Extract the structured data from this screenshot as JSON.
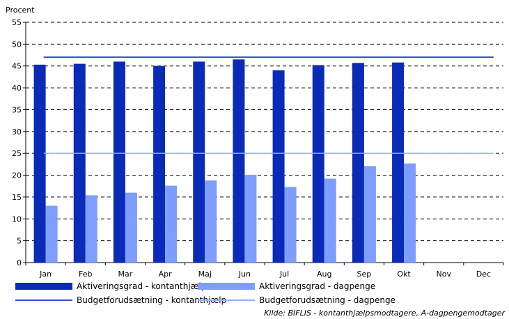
{
  "chart_data": {
    "type": "bar",
    "ylabel": "Procent",
    "ylim": [
      0,
      55
    ],
    "yticks": [
      0,
      5,
      10,
      15,
      20,
      25,
      30,
      35,
      40,
      45,
      50,
      55
    ],
    "categories": [
      "Jan",
      "Feb",
      "Mar",
      "Apr",
      "Maj",
      "Jun",
      "Jul",
      "Aug",
      "Sep",
      "Okt",
      "Nov",
      "Dec"
    ],
    "grid": true,
    "legend_position": "bottom",
    "series": [
      {
        "name": "Aktiveringsgrad - kontanthjælp",
        "kind": "bar",
        "color": "#0a2bb8",
        "values": [
          45.3,
          45.5,
          46.0,
          45.0,
          46.0,
          46.5,
          44.0,
          45.2,
          45.7,
          45.8,
          null,
          null
        ]
      },
      {
        "name": "Aktiveringsgrad - dagpenge",
        "kind": "bar",
        "color": "#7f9dff",
        "values": [
          13.0,
          15.4,
          16.0,
          17.6,
          18.8,
          20.1,
          17.3,
          19.2,
          22.1,
          22.7,
          null,
          null
        ]
      },
      {
        "name": "Budgetforudsætning - kontanthjælp",
        "kind": "line",
        "color": "#2f4fcc",
        "values": [
          47,
          47,
          47,
          47,
          47,
          47,
          47,
          47,
          47,
          47,
          47,
          47
        ]
      },
      {
        "name": "Budgetforudsætning - dagpenge",
        "kind": "line",
        "color": "#8fb0ff",
        "values": [
          25,
          25,
          25,
          25,
          25,
          25,
          25,
          25,
          25,
          25,
          25,
          25
        ]
      }
    ],
    "source": "Kilde: BIFLIS - kontanthjælpsmodtagere, A-dagpengemodtager"
  }
}
